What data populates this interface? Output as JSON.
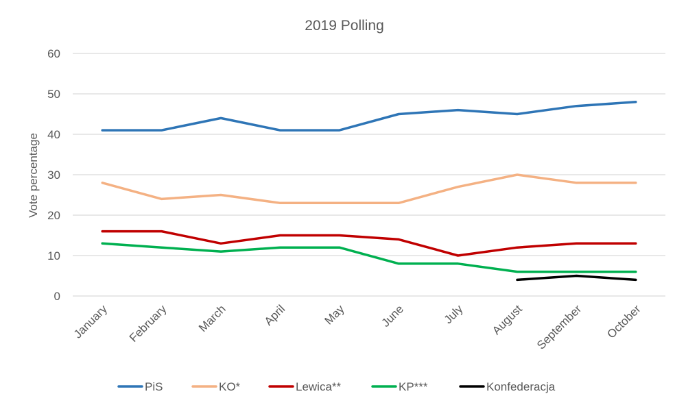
{
  "chart_data": {
    "type": "line",
    "title": "2019 Polling",
    "xlabel": "",
    "ylabel": "Vote percentage",
    "ylim": [
      0,
      60
    ],
    "yticks": [
      0,
      10,
      20,
      30,
      40,
      50,
      60
    ],
    "grid": true,
    "legend_position": "bottom",
    "categories": [
      "January",
      "February",
      "March",
      "April",
      "May",
      "June",
      "July",
      "August",
      "September",
      "October"
    ],
    "series": [
      {
        "name": "PiS",
        "color": "#2E75B6",
        "values": [
          41,
          41,
          44,
          41,
          41,
          45,
          46,
          45,
          47,
          48
        ]
      },
      {
        "name": "KO*",
        "color": "#F4B183",
        "values": [
          28,
          24,
          25,
          23,
          23,
          23,
          27,
          30,
          28,
          28
        ]
      },
      {
        "name": "Lewica**",
        "color": "#C00000",
        "values": [
          16,
          16,
          13,
          15,
          15,
          14,
          10,
          12,
          13,
          13
        ]
      },
      {
        "name": "KP***",
        "color": "#00B050",
        "values": [
          13,
          12,
          11,
          12,
          12,
          8,
          8,
          6,
          6,
          6
        ]
      },
      {
        "name": "Konfederacja",
        "color": "#000000",
        "values": [
          null,
          null,
          null,
          null,
          null,
          null,
          null,
          4,
          5,
          4
        ]
      }
    ]
  }
}
